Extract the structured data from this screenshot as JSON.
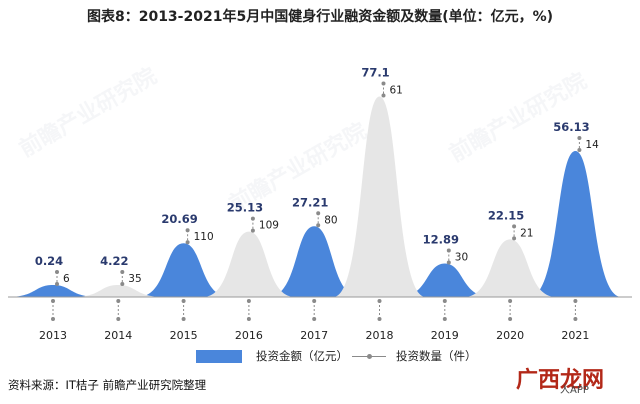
{
  "title": "图表8：2013-2021年5月中国健身行业融资金额及数量(单位：亿元，%)",
  "source": "资料来源：IT桔子 前瞻产业研究院整理",
  "watermark": "前瞻产业研究院",
  "corner_watermark": "广西龙网",
  "corner_watermark_sub": "人APP",
  "legend": {
    "amount": "投资金额（亿元）",
    "count": "投资数量（件）"
  },
  "colors": {
    "blue": "#4a86db",
    "gray": "#e6e6e6",
    "label_blue": "#2a3a6e",
    "connector": "#8a8a8a"
  },
  "chart_data": {
    "type": "area",
    "categories": [
      "2013",
      "2014",
      "2015",
      "2016",
      "2017",
      "2018",
      "2019",
      "2020",
      "2021"
    ],
    "series": [
      {
        "name": "投资金额（亿元）",
        "values": [
          0.24,
          4.22,
          20.69,
          25.13,
          27.21,
          77.1,
          12.89,
          22.15,
          56.13
        ]
      },
      {
        "name": "投资数量（件）",
        "values": [
          6,
          35,
          110,
          109,
          80,
          61,
          30,
          21,
          14
        ]
      }
    ]
  }
}
